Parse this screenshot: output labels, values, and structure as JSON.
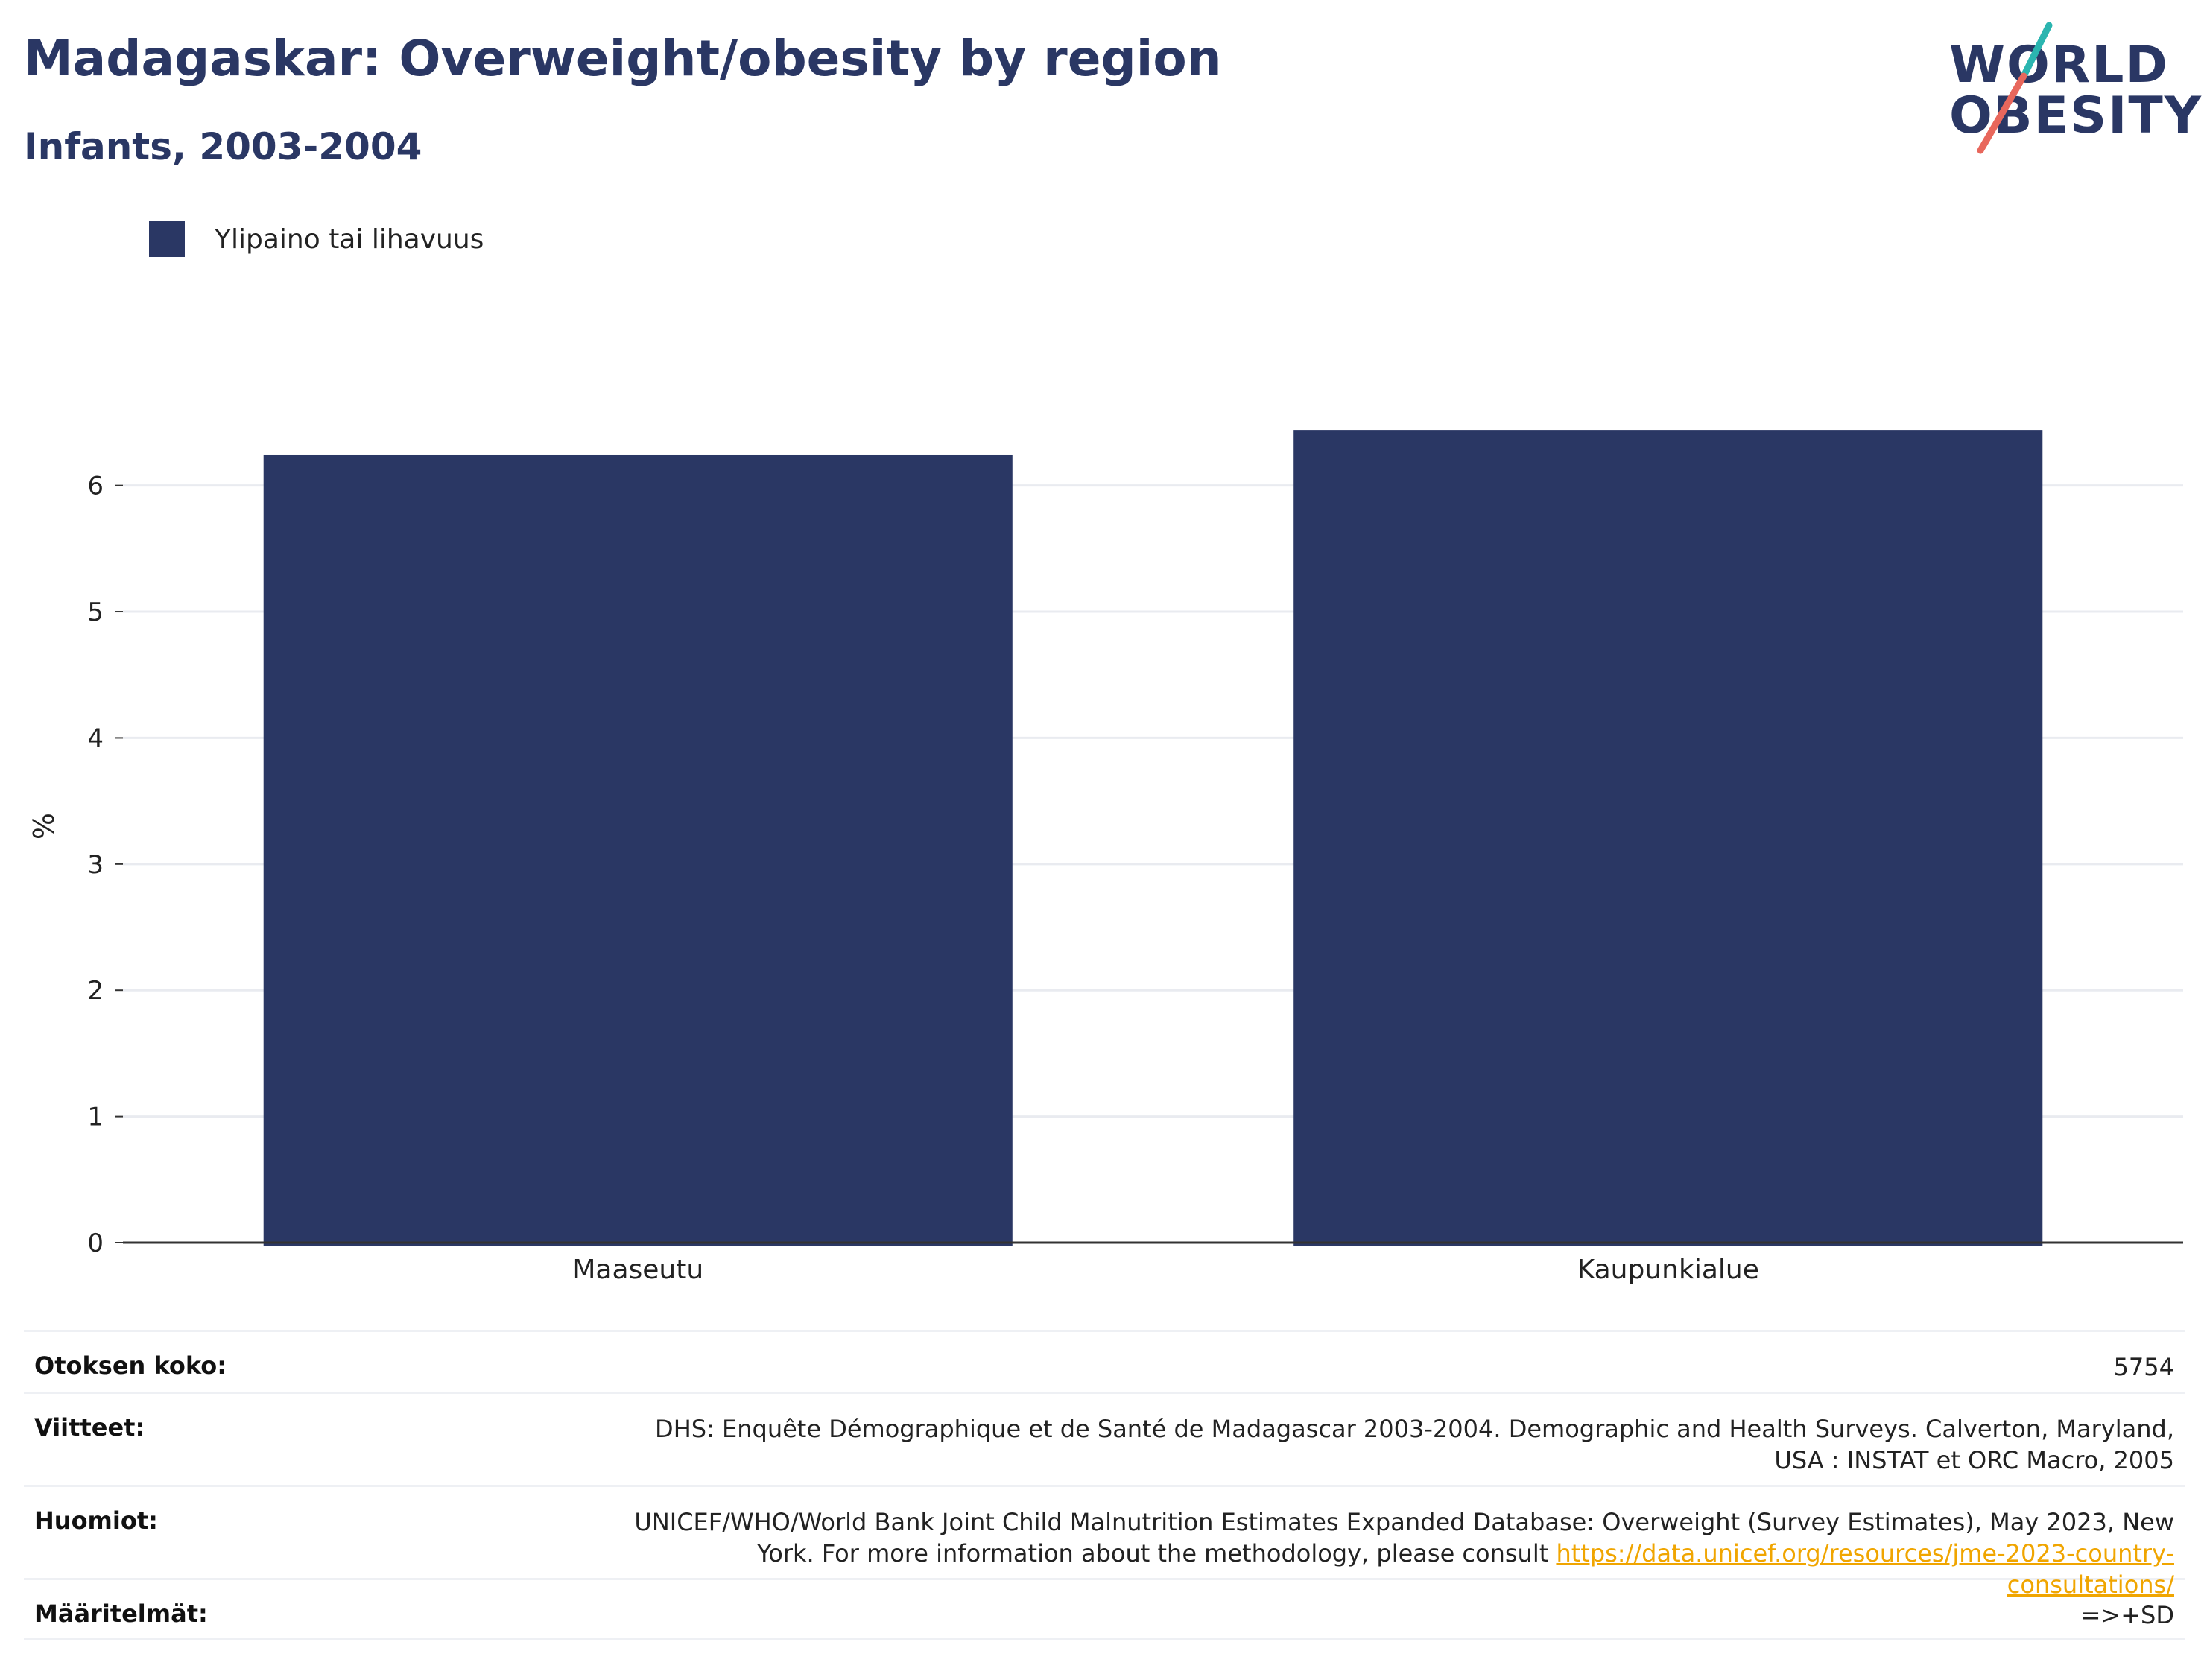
{
  "header": {
    "title": "Madagaskar: Overweight/obesity by region",
    "subtitle": "Infants, 2003-2004"
  },
  "logo": {
    "line1": "WORLD",
    "line2": "OBESITY",
    "colors": {
      "text": "#2a3764",
      "slash_top": "#2bb5b0",
      "slash_bottom": "#e8675c"
    }
  },
  "legend": {
    "label": "Ylipaino tai lihavuus"
  },
  "colors": {
    "bar": "#2a3764",
    "grid": "#e9ebf0",
    "axis": "#333333"
  },
  "chart_data": {
    "type": "bar",
    "categories": [
      "Maaseutu",
      "Kaupunkialue"
    ],
    "series": [
      {
        "name": "Ylipaino tai lihavuus",
        "values": [
          6.24,
          6.44
        ]
      }
    ],
    "ylabel": "%",
    "ylim": [
      0,
      6.6
    ],
    "yticks": [
      0,
      1,
      2,
      3,
      4,
      5,
      6
    ],
    "grid": true,
    "legend_position": "top-left"
  },
  "info": {
    "sample_size": {
      "label": "Otoksen koko:",
      "value": "5754"
    },
    "references": {
      "label": "Viitteet:",
      "value": "DHS: Enquête Démographique et de Santé de Madagascar 2003-2004. Demographic and Health Surveys. Calverton, Maryland, USA : INSTAT et ORC Macro, 2005"
    },
    "notes": {
      "label": "Huomiot:",
      "value": "UNICEF/WHO/World Bank Joint Child Malnutrition Estimates Expanded Database: Overweight (Survey Estimates), May 2023, New York. For more information about the methodology, please consult ",
      "link": "https://data.unicef.org/resources/jme-2023-country-consultations/"
    },
    "definitions": {
      "label": "Määritelmät:",
      "value": "=>+SD"
    }
  }
}
